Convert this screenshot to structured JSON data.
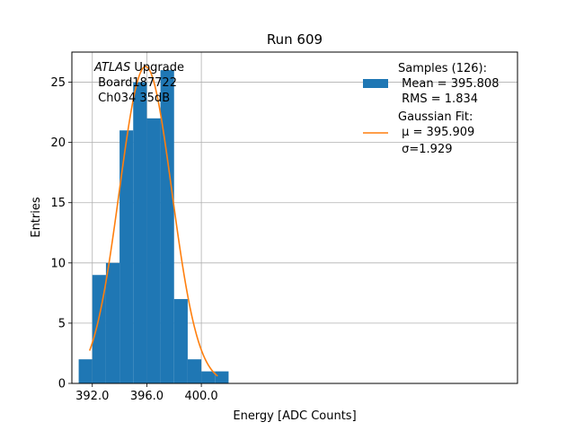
{
  "chart_data": {
    "type": "bar",
    "title": "Run 609",
    "xlabel": "Energy [ADC Counts]",
    "ylabel": "Entries",
    "xlim": [
      390.5,
      423.2
    ],
    "ylim": [
      0,
      27.5
    ],
    "xticks": [
      392,
      396,
      400
    ],
    "xtick_labels": [
      "392.0",
      "396.0",
      "400.0"
    ],
    "yticks": [
      0,
      5,
      10,
      15,
      20,
      25
    ],
    "ytick_labels": [
      "0",
      "5",
      "10",
      "15",
      "20",
      "25"
    ],
    "grid": true,
    "histogram": {
      "color": "#1f77b4",
      "bin_edges": [
        391,
        392,
        393,
        394,
        395,
        396,
        397,
        398,
        399,
        400,
        401,
        402
      ],
      "counts": [
        2,
        9,
        10,
        21,
        25,
        22,
        26,
        7,
        2,
        1,
        1
      ]
    },
    "fit": {
      "color": "#ff7f0e",
      "mu": 395.909,
      "sigma": 1.929,
      "amplitude": 26.3,
      "x_range": [
        391.8,
        401.2
      ]
    },
    "annotation": {
      "italic": "ATLAS",
      "rest": " Upgrade",
      "line2": " Board187722",
      "line3": " Ch034 35dB"
    },
    "legend": {
      "position": "top-right",
      "samples_line1": "Samples (126):",
      "samples_line2": " Mean = 395.808",
      "samples_line3": " RMS = 1.834",
      "fit_line1": "Gaussian Fit:",
      "fit_line2": " μ = 395.909",
      "fit_line3": " σ=1.929"
    }
  }
}
